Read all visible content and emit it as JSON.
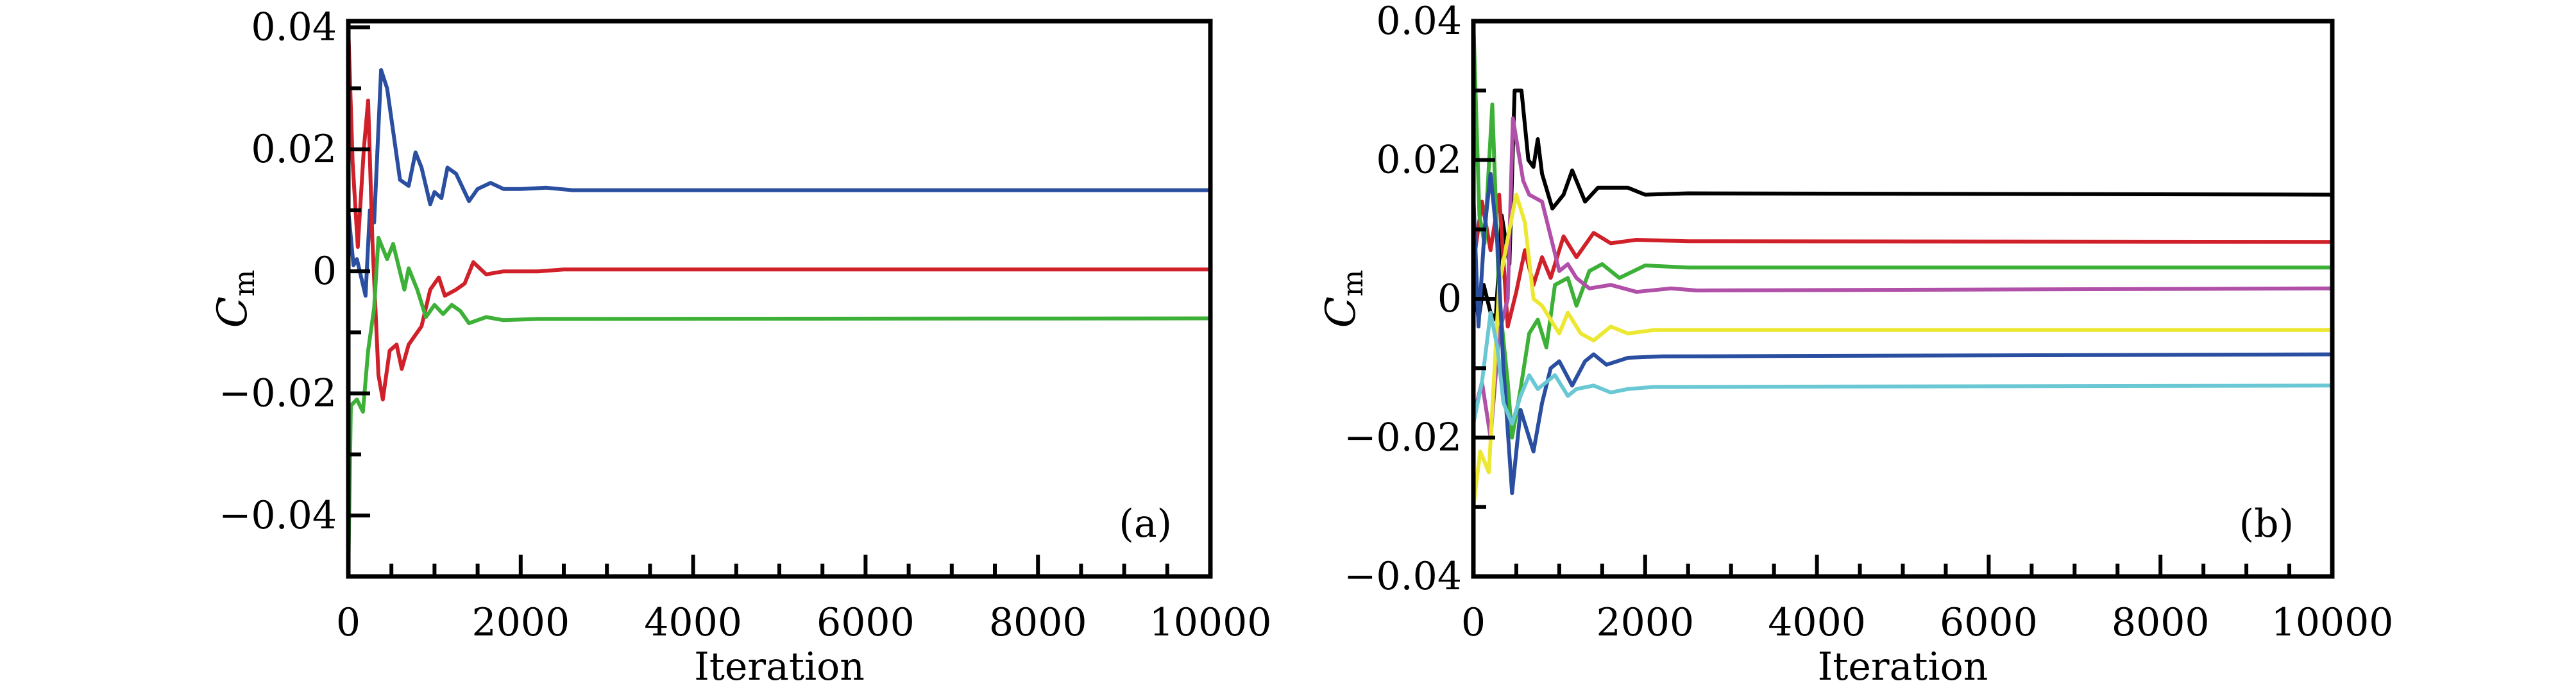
{
  "chart_data": [
    {
      "type": "line",
      "panel_label": "(a)",
      "xlabel": "Iteration",
      "ylabel": "C",
      "ylabel_sub": "m",
      "xlim": [
        0,
        10000
      ],
      "ylim": [
        -0.05,
        0.041
      ],
      "xticks": [
        0,
        2000,
        4000,
        6000,
        8000,
        10000
      ],
      "xtick_labels": [
        "0",
        "2000",
        "4000",
        "6000",
        "8000",
        "10000"
      ],
      "yticks": [
        0.04,
        0.02,
        0,
        -0.02,
        -0.04
      ],
      "ytick_labels": [
        "0.04",
        "0.02",
        "0",
        "−0.02",
        "−0.04"
      ],
      "grid": false,
      "series": [
        {
          "name": "blue",
          "color": "#2a4ea0",
          "x": [
            0,
            60,
            100,
            200,
            250,
            300,
            380,
            450,
            600,
            700,
            780,
            850,
            950,
            1000,
            1080,
            1150,
            1250,
            1400,
            1500,
            1650,
            1800,
            2000,
            2300,
            2600,
            10000
          ],
          "y": [
            0.01,
            0.001,
            0.002,
            -0.004,
            0.01,
            0.008,
            0.033,
            0.03,
            0.015,
            0.014,
            0.0195,
            0.017,
            0.011,
            0.013,
            0.012,
            0.017,
            0.016,
            0.0115,
            0.0135,
            0.0145,
            0.0135,
            0.0135,
            0.0137,
            0.0133,
            0.0133
          ]
        },
        {
          "name": "red",
          "color": "#d0202a",
          "x": [
            0,
            50,
            110,
            180,
            230,
            280,
            350,
            400,
            480,
            560,
            620,
            700,
            850,
            950,
            1050,
            1120,
            1250,
            1350,
            1450,
            1600,
            1800,
            2200,
            2500,
            10000
          ],
          "y": [
            0.04,
            0.018,
            0.004,
            0.02,
            0.028,
            0.005,
            -0.017,
            -0.021,
            -0.013,
            -0.012,
            -0.016,
            -0.012,
            -0.009,
            -0.003,
            -0.001,
            -0.004,
            -0.003,
            -0.002,
            0.0015,
            -0.0005,
            0,
            0,
            0.0003,
            0.0003
          ]
        },
        {
          "name": "green",
          "color": "#3db038",
          "x": [
            0,
            30,
            100,
            170,
            230,
            300,
            350,
            450,
            520,
            650,
            700,
            800,
            900,
            1000,
            1100,
            1200,
            1300,
            1400,
            1600,
            1800,
            2200,
            10000
          ],
          "y": [
            -0.05,
            -0.022,
            -0.021,
            -0.023,
            -0.013,
            -0.006,
            0.0055,
            0.002,
            0.0045,
            -0.003,
            0.0005,
            -0.003,
            -0.0075,
            -0.0055,
            -0.007,
            -0.0055,
            -0.0065,
            -0.0085,
            -0.0075,
            -0.008,
            -0.0078,
            -0.0077
          ]
        }
      ]
    },
    {
      "type": "line",
      "panel_label": "(b)",
      "xlabel": "Iteration",
      "ylabel": "C",
      "ylabel_sub": "m",
      "xlim": [
        0,
        10000
      ],
      "ylim": [
        -0.04,
        0.04
      ],
      "xticks": [
        0,
        2000,
        4000,
        6000,
        8000,
        10000
      ],
      "xtick_labels": [
        "0",
        "2000",
        "4000",
        "6000",
        "8000",
        "10000"
      ],
      "yticks": [
        0.04,
        0.02,
        0,
        -0.02,
        -0.04
      ],
      "ytick_labels": [
        "0.04",
        "0.02",
        "0",
        "−0.02",
        "−0.04"
      ],
      "grid": false,
      "series": [
        {
          "name": "black",
          "color": "#000000",
          "x": [
            0,
            60,
            120,
            200,
            260,
            330,
            420,
            480,
            560,
            640,
            700,
            750,
            800,
            920,
            1050,
            1150,
            1300,
            1450,
            1800,
            2000,
            2500,
            10000
          ],
          "y": [
            0.004,
            -0.003,
            0.002,
            -0.002,
            -0.003,
            0.012,
            0.005,
            0.03,
            0.03,
            0.02,
            0.019,
            0.023,
            0.018,
            0.013,
            0.015,
            0.0185,
            0.014,
            0.016,
            0.016,
            0.015,
            0.0152,
            0.015
          ]
        },
        {
          "name": "red",
          "color": "#d0202a",
          "x": [
            0,
            100,
            200,
            300,
            400,
            500,
            600,
            700,
            800,
            900,
            1050,
            1200,
            1400,
            1600,
            1900,
            2500,
            10000
          ],
          "y": [
            0.005,
            0.014,
            0.007,
            0.015,
            -0.004,
            0.001,
            0.007,
            0.002,
            0.006,
            0.003,
            0.009,
            0.006,
            0.0095,
            0.008,
            0.0085,
            0.0083,
            0.0082
          ]
        },
        {
          "name": "green",
          "color": "#3db038",
          "x": [
            0,
            70,
            130,
            220,
            300,
            400,
            450,
            550,
            650,
            750,
            850,
            950,
            1100,
            1200,
            1350,
            1500,
            1700,
            2000,
            2500,
            10000
          ],
          "y": [
            0.04,
            0.012,
            0.008,
            0.028,
            0.0,
            -0.012,
            -0.02,
            -0.013,
            -0.005,
            -0.003,
            -0.007,
            0.002,
            0.003,
            -0.001,
            0.004,
            0.005,
            0.003,
            0.0048,
            0.0045,
            0.0045
          ]
        },
        {
          "name": "magenta",
          "color": "#b050a8",
          "x": [
            0,
            100,
            200,
            300,
            400,
            460,
            580,
            650,
            800,
            900,
            1000,
            1100,
            1200,
            1350,
            1600,
            1900,
            2300,
            2600,
            10000
          ],
          "y": [
            -0.017,
            -0.012,
            -0.02,
            -0.005,
            0.0,
            0.026,
            0.017,
            0.015,
            0.014,
            0.009,
            0.004,
            0.005,
            0.003,
            0.0015,
            0.002,
            0.001,
            0.0015,
            0.0012,
            0.0015
          ]
        },
        {
          "name": "yellow",
          "color": "#ece832",
          "x": [
            0,
            80,
            180,
            300,
            420,
            500,
            600,
            700,
            800,
            900,
            1000,
            1100,
            1250,
            1400,
            1600,
            1800,
            2100,
            10000
          ],
          "y": [
            -0.03,
            -0.022,
            -0.025,
            0.002,
            0.01,
            0.015,
            0.011,
            0.0,
            -0.001,
            -0.003,
            -0.005,
            -0.002,
            -0.005,
            -0.006,
            -0.004,
            -0.005,
            -0.0045,
            -0.0045
          ]
        },
        {
          "name": "blue",
          "color": "#2a4ea0",
          "x": [
            0,
            60,
            130,
            200,
            280,
            350,
            450,
            550,
            650,
            700,
            800,
            900,
            1000,
            1150,
            1300,
            1400,
            1550,
            1800,
            2200,
            10000
          ],
          "y": [
            0.015,
            -0.004,
            0.01,
            0.018,
            0.008,
            -0.01,
            -0.028,
            -0.016,
            -0.02,
            -0.022,
            -0.015,
            -0.01,
            -0.009,
            -0.0125,
            -0.009,
            -0.008,
            -0.0095,
            -0.0085,
            -0.0083,
            -0.008
          ]
        },
        {
          "name": "cyan",
          "color": "#6ac8d4",
          "x": [
            0,
            100,
            200,
            280,
            350,
            450,
            550,
            650,
            750,
            850,
            950,
            1100,
            1200,
            1400,
            1600,
            1800,
            2100,
            10000
          ],
          "y": [
            -0.018,
            -0.012,
            -0.002,
            -0.007,
            -0.015,
            -0.018,
            -0.014,
            -0.011,
            -0.013,
            -0.012,
            -0.011,
            -0.014,
            -0.013,
            -0.0125,
            -0.0135,
            -0.013,
            -0.0127,
            -0.0125
          ]
        }
      ]
    }
  ]
}
